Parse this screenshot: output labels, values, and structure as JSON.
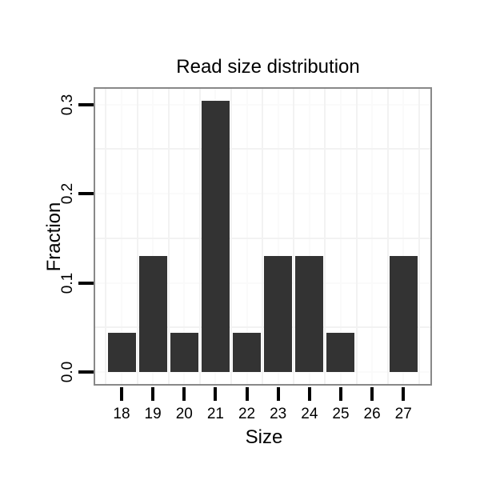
{
  "title": "Read size distribution",
  "colors": {
    "bar_fill": "#333333",
    "panel_border": "#888888",
    "grid_major": "#fafafa",
    "grid_minor": "#f2f2f2",
    "tick": "#000000",
    "text": "#000000",
    "background": "#ffffff"
  },
  "chart_data": {
    "type": "bar",
    "title": "Read size distribution",
    "xlabel": "Size",
    "ylabel": "Fraction",
    "categories": [
      "18",
      "19",
      "20",
      "21",
      "22",
      "23",
      "24",
      "25",
      "26",
      "27"
    ],
    "values": [
      0.0435,
      0.1304,
      0.0435,
      0.3043,
      0.0435,
      0.1304,
      0.1304,
      0.0435,
      0,
      0.1304
    ],
    "y_ticks": [
      0.0,
      0.1,
      0.2,
      0.3
    ],
    "y_tick_labels": [
      "0.0",
      "0.1",
      "0.2",
      "0.3"
    ],
    "y_minor_gridlines": [
      0.05,
      0.15,
      0.25
    ],
    "ylim": [
      -0.0152,
      0.3195
    ],
    "grid": "on",
    "legend": "none"
  }
}
